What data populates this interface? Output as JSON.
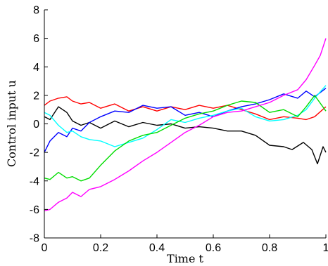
{
  "chart_data": {
    "type": "line",
    "title": "",
    "xlabel": "Time t",
    "ylabel": "Control input u",
    "xlim": [
      0,
      1
    ],
    "ylim": [
      -8,
      8
    ],
    "xticks": [
      0,
      0.2,
      0.4,
      0.6,
      0.8,
      1
    ],
    "yticks": [
      -8,
      -6,
      -4,
      -2,
      0,
      2,
      4,
      6,
      8
    ],
    "xtick_labels": [
      "0",
      "0.2",
      "0.4",
      "0.6",
      "0.8",
      "1"
    ],
    "ytick_labels": [
      "-8",
      "-6",
      "-4",
      "-2",
      "0",
      "2",
      "4",
      "6",
      "8"
    ],
    "grid": false,
    "legend": "none",
    "series": [
      {
        "color": "#ff0000",
        "x": [
          0,
          0.02,
          0.05,
          0.08,
          0.1,
          0.13,
          0.16,
          0.2,
          0.25,
          0.3,
          0.35,
          0.4,
          0.45,
          0.5,
          0.55,
          0.6,
          0.65,
          0.7,
          0.75,
          0.8,
          0.85,
          0.9,
          0.93,
          0.96,
          1.0
        ],
        "y": [
          1.3,
          1.6,
          1.8,
          1.9,
          1.6,
          1.4,
          1.5,
          1.1,
          1.4,
          0.9,
          1.2,
          0.9,
          1.2,
          1.0,
          1.3,
          1.1,
          1.3,
          1.0,
          0.7,
          0.3,
          0.5,
          0.4,
          0.3,
          0.5,
          1.2
        ]
      },
      {
        "color": "#000000",
        "x": [
          0,
          0.02,
          0.05,
          0.08,
          0.1,
          0.13,
          0.16,
          0.2,
          0.25,
          0.3,
          0.35,
          0.4,
          0.45,
          0.5,
          0.55,
          0.6,
          0.65,
          0.7,
          0.75,
          0.8,
          0.85,
          0.88,
          0.92,
          0.95,
          0.97,
          0.99,
          1.0
        ],
        "y": [
          0.5,
          0.3,
          1.2,
          0.8,
          0.2,
          -0.1,
          0.1,
          -0.3,
          0.2,
          -0.2,
          0.1,
          -0.1,
          0.0,
          -0.3,
          -0.2,
          -0.3,
          -0.5,
          -0.5,
          -0.8,
          -1.5,
          -1.6,
          -1.8,
          -1.3,
          -1.8,
          -2.8,
          -1.6,
          -2.0
        ]
      },
      {
        "color": "#0000ff",
        "x": [
          0,
          0.02,
          0.05,
          0.08,
          0.1,
          0.13,
          0.16,
          0.2,
          0.25,
          0.3,
          0.35,
          0.4,
          0.45,
          0.5,
          0.55,
          0.6,
          0.65,
          0.7,
          0.75,
          0.8,
          0.85,
          0.9,
          0.93,
          0.96,
          1.0
        ],
        "y": [
          -2.0,
          -1.2,
          -0.6,
          -0.9,
          -0.3,
          -0.5,
          0.1,
          0.5,
          0.9,
          0.8,
          1.3,
          1.1,
          1.2,
          0.6,
          0.8,
          0.5,
          0.9,
          1.2,
          1.4,
          1.7,
          2.1,
          1.8,
          2.3,
          1.9,
          2.5
        ]
      },
      {
        "color": "#00ffff",
        "x": [
          0,
          0.02,
          0.05,
          0.08,
          0.1,
          0.13,
          0.16,
          0.2,
          0.25,
          0.3,
          0.35,
          0.4,
          0.45,
          0.5,
          0.55,
          0.6,
          0.65,
          0.7,
          0.75,
          0.8,
          0.85,
          0.9,
          0.93,
          0.96,
          1.0
        ],
        "y": [
          0.8,
          0.6,
          -0.1,
          -0.6,
          -0.5,
          -0.9,
          -1.1,
          -1.2,
          -1.6,
          -1.3,
          -1.0,
          -0.4,
          0.3,
          0.1,
          0.4,
          0.6,
          0.9,
          1.1,
          0.5,
          0.2,
          0.3,
          0.6,
          1.0,
          1.8,
          2.7
        ]
      },
      {
        "color": "#00dd00",
        "x": [
          0,
          0.02,
          0.05,
          0.08,
          0.1,
          0.13,
          0.16,
          0.2,
          0.25,
          0.3,
          0.35,
          0.4,
          0.45,
          0.5,
          0.55,
          0.6,
          0.65,
          0.7,
          0.75,
          0.8,
          0.85,
          0.9,
          0.93,
          0.96,
          1.0
        ],
        "y": [
          -3.8,
          -3.9,
          -3.4,
          -3.8,
          -3.7,
          -4.0,
          -3.8,
          -2.9,
          -1.9,
          -1.2,
          -0.8,
          -0.6,
          -0.1,
          0.4,
          0.7,
          0.9,
          1.3,
          1.6,
          1.5,
          0.8,
          1.0,
          0.5,
          1.2,
          2.0,
          0.9
        ]
      },
      {
        "color": "#ff00ff",
        "x": [
          0,
          0.02,
          0.05,
          0.08,
          0.1,
          0.13,
          0.16,
          0.2,
          0.25,
          0.3,
          0.35,
          0.4,
          0.45,
          0.5,
          0.55,
          0.6,
          0.65,
          0.7,
          0.75,
          0.8,
          0.85,
          0.9,
          0.93,
          0.96,
          0.98,
          1.0
        ],
        "y": [
          -6.1,
          -6.0,
          -5.5,
          -5.2,
          -4.8,
          -5.1,
          -4.6,
          -4.4,
          -3.9,
          -3.3,
          -2.6,
          -2.0,
          -1.3,
          -0.6,
          -0.1,
          0.5,
          0.8,
          0.9,
          1.2,
          1.5,
          2.0,
          2.4,
          3.1,
          4.1,
          4.8,
          6.0
        ]
      }
    ]
  }
}
